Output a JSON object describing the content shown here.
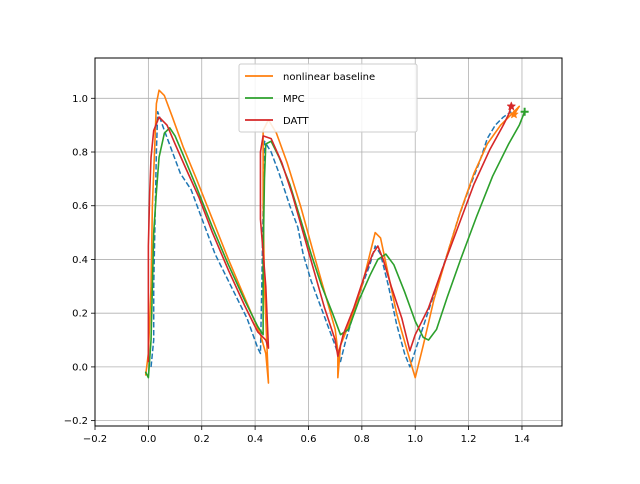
{
  "chart_data": {
    "type": "line",
    "title": "",
    "xlabel": "",
    "ylabel": "",
    "xlim": [
      -0.2,
      1.55
    ],
    "ylim": [
      -0.22,
      1.15
    ],
    "x_ticks": [
      -0.2,
      0.0,
      0.2,
      0.4,
      0.6,
      0.8,
      1.0,
      1.2,
      1.4
    ],
    "x_tick_labels": [
      "−0.2",
      "0.0",
      "0.2",
      "0.4",
      "0.6",
      "0.8",
      "1.0",
      "1.2",
      "1.4"
    ],
    "y_ticks": [
      -0.2,
      0.0,
      0.2,
      0.4,
      0.6,
      0.8,
      1.0
    ],
    "y_tick_labels": [
      "−0.2",
      "0.0",
      "0.2",
      "0.4",
      "0.6",
      "0.8",
      "1.0"
    ],
    "grid": true,
    "legend_position": "top-center",
    "reference": {
      "name": "",
      "color": "#1f77b4",
      "style": "dashed",
      "points": [
        [
          0.01,
          0.0
        ],
        [
          0.02,
          0.1
        ],
        [
          0.02,
          0.3
        ],
        [
          0.025,
          0.55
        ],
        [
          0.03,
          0.8
        ],
        [
          0.035,
          0.95
        ],
        [
          0.06,
          0.88
        ],
        [
          0.09,
          0.8
        ],
        [
          0.12,
          0.72
        ],
        [
          0.16,
          0.66
        ],
        [
          0.19,
          0.58
        ],
        [
          0.22,
          0.5
        ],
        [
          0.25,
          0.42
        ],
        [
          0.29,
          0.34
        ],
        [
          0.33,
          0.26
        ],
        [
          0.37,
          0.18
        ],
        [
          0.41,
          0.07
        ],
        [
          0.42,
          0.05
        ],
        [
          0.425,
          0.3
        ],
        [
          0.43,
          0.6
        ],
        [
          0.435,
          0.84
        ],
        [
          0.46,
          0.8
        ],
        [
          0.49,
          0.72
        ],
        [
          0.53,
          0.6
        ],
        [
          0.56,
          0.52
        ],
        [
          0.58,
          0.42
        ],
        [
          0.61,
          0.32
        ],
        [
          0.64,
          0.24
        ],
        [
          0.67,
          0.16
        ],
        [
          0.7,
          0.08
        ],
        [
          0.72,
          0.02
        ],
        [
          0.74,
          0.1
        ],
        [
          0.77,
          0.2
        ],
        [
          0.8,
          0.3
        ],
        [
          0.83,
          0.38
        ],
        [
          0.85,
          0.45
        ],
        [
          0.87,
          0.42
        ],
        [
          0.9,
          0.3
        ],
        [
          0.93,
          0.16
        ],
        [
          0.96,
          0.05
        ],
        [
          0.98,
          0.0
        ],
        [
          1.0,
          0.06
        ],
        [
          1.04,
          0.18
        ],
        [
          1.08,
          0.3
        ],
        [
          1.12,
          0.42
        ],
        [
          1.16,
          0.55
        ],
        [
          1.2,
          0.66
        ],
        [
          1.24,
          0.76
        ],
        [
          1.27,
          0.85
        ],
        [
          1.3,
          0.9
        ],
        [
          1.33,
          0.93
        ],
        [
          1.36,
          0.95
        ]
      ]
    },
    "series": [
      {
        "name": "nonlinear baseline",
        "color": "#ff7f0e",
        "end_marker": "star",
        "points": [
          [
            -0.01,
            -0.03
          ],
          [
            0.0,
            0.05
          ],
          [
            0.01,
            0.3
          ],
          [
            0.015,
            0.6
          ],
          [
            0.025,
            0.85
          ],
          [
            0.03,
            0.98
          ],
          [
            0.04,
            1.03
          ],
          [
            0.06,
            1.01
          ],
          [
            0.09,
            0.93
          ],
          [
            0.13,
            0.82
          ],
          [
            0.18,
            0.7
          ],
          [
            0.24,
            0.55
          ],
          [
            0.3,
            0.4
          ],
          [
            0.36,
            0.26
          ],
          [
            0.42,
            0.12
          ],
          [
            0.44,
            0.05
          ],
          [
            0.45,
            -0.06
          ],
          [
            0.435,
            0.3
          ],
          [
            0.43,
            0.62
          ],
          [
            0.43,
            0.88
          ],
          [
            0.45,
            0.92
          ],
          [
            0.48,
            0.87
          ],
          [
            0.52,
            0.76
          ],
          [
            0.57,
            0.6
          ],
          [
            0.62,
            0.42
          ],
          [
            0.66,
            0.28
          ],
          [
            0.7,
            0.14
          ],
          [
            0.71,
            0.06
          ],
          [
            0.71,
            -0.04
          ],
          [
            0.72,
            0.08
          ],
          [
            0.76,
            0.18
          ],
          [
            0.8,
            0.3
          ],
          [
            0.83,
            0.42
          ],
          [
            0.85,
            0.5
          ],
          [
            0.87,
            0.48
          ],
          [
            0.9,
            0.34
          ],
          [
            0.93,
            0.2
          ],
          [
            0.97,
            0.06
          ],
          [
            1.0,
            -0.04
          ],
          [
            1.03,
            0.08
          ],
          [
            1.07,
            0.25
          ],
          [
            1.12,
            0.42
          ],
          [
            1.17,
            0.58
          ],
          [
            1.22,
            0.72
          ],
          [
            1.27,
            0.83
          ],
          [
            1.32,
            0.9
          ],
          [
            1.36,
            0.94
          ],
          [
            1.39,
            0.97
          ],
          [
            1.37,
            0.94
          ]
        ]
      },
      {
        "name": "MPC",
        "color": "#2ca02c",
        "end_marker": "plus",
        "points": [
          [
            -0.01,
            -0.02
          ],
          [
            0.0,
            -0.04
          ],
          [
            0.01,
            0.1
          ],
          [
            0.015,
            0.3
          ],
          [
            0.02,
            0.5
          ],
          [
            0.03,
            0.65
          ],
          [
            0.04,
            0.78
          ],
          [
            0.06,
            0.87
          ],
          [
            0.08,
            0.89
          ],
          [
            0.1,
            0.86
          ],
          [
            0.13,
            0.79
          ],
          [
            0.18,
            0.67
          ],
          [
            0.24,
            0.52
          ],
          [
            0.3,
            0.38
          ],
          [
            0.36,
            0.25
          ],
          [
            0.41,
            0.15
          ],
          [
            0.43,
            0.12
          ],
          [
            0.43,
            0.4
          ],
          [
            0.435,
            0.7
          ],
          [
            0.44,
            0.83
          ],
          [
            0.46,
            0.84
          ],
          [
            0.49,
            0.78
          ],
          [
            0.53,
            0.68
          ],
          [
            0.57,
            0.55
          ],
          [
            0.61,
            0.42
          ],
          [
            0.65,
            0.3
          ],
          [
            0.69,
            0.2
          ],
          [
            0.72,
            0.12
          ],
          [
            0.75,
            0.14
          ],
          [
            0.79,
            0.25
          ],
          [
            0.83,
            0.34
          ],
          [
            0.86,
            0.4
          ],
          [
            0.89,
            0.42
          ],
          [
            0.92,
            0.38
          ],
          [
            0.96,
            0.28
          ],
          [
            1.0,
            0.17
          ],
          [
            1.03,
            0.11
          ],
          [
            1.05,
            0.1
          ],
          [
            1.08,
            0.14
          ],
          [
            1.12,
            0.26
          ],
          [
            1.17,
            0.4
          ],
          [
            1.23,
            0.56
          ],
          [
            1.29,
            0.71
          ],
          [
            1.35,
            0.83
          ],
          [
            1.39,
            0.9
          ],
          [
            1.41,
            0.95
          ]
        ]
      },
      {
        "name": "DATT",
        "color": "#d62728",
        "end_marker": "star",
        "points": [
          [
            0.0,
            0.02
          ],
          [
            0.0,
            0.2
          ],
          [
            0.0,
            0.45
          ],
          [
            0.005,
            0.65
          ],
          [
            0.01,
            0.78
          ],
          [
            0.02,
            0.88
          ],
          [
            0.04,
            0.93
          ],
          [
            0.07,
            0.9
          ],
          [
            0.1,
            0.83
          ],
          [
            0.14,
            0.74
          ],
          [
            0.19,
            0.63
          ],
          [
            0.24,
            0.5
          ],
          [
            0.3,
            0.36
          ],
          [
            0.36,
            0.23
          ],
          [
            0.41,
            0.13
          ],
          [
            0.44,
            0.1
          ],
          [
            0.45,
            0.07
          ],
          [
            0.44,
            0.3
          ],
          [
            0.42,
            0.55
          ],
          [
            0.42,
            0.8
          ],
          [
            0.43,
            0.86
          ],
          [
            0.46,
            0.85
          ],
          [
            0.5,
            0.76
          ],
          [
            0.54,
            0.64
          ],
          [
            0.58,
            0.5
          ],
          [
            0.62,
            0.36
          ],
          [
            0.66,
            0.22
          ],
          [
            0.7,
            0.1
          ],
          [
            0.71,
            0.04
          ],
          [
            0.73,
            0.12
          ],
          [
            0.77,
            0.22
          ],
          [
            0.81,
            0.34
          ],
          [
            0.84,
            0.42
          ],
          [
            0.86,
            0.45
          ],
          [
            0.88,
            0.4
          ],
          [
            0.91,
            0.3
          ],
          [
            0.95,
            0.18
          ],
          [
            0.97,
            0.1
          ],
          [
            0.98,
            0.06
          ],
          [
            1.0,
            0.12
          ],
          [
            1.05,
            0.22
          ],
          [
            1.1,
            0.36
          ],
          [
            1.16,
            0.52
          ],
          [
            1.22,
            0.68
          ],
          [
            1.28,
            0.81
          ],
          [
            1.33,
            0.9
          ],
          [
            1.35,
            0.94
          ],
          [
            1.36,
            0.97
          ]
        ]
      }
    ],
    "legend": [
      "nonlinear baseline",
      "MPC",
      "DATT"
    ]
  }
}
